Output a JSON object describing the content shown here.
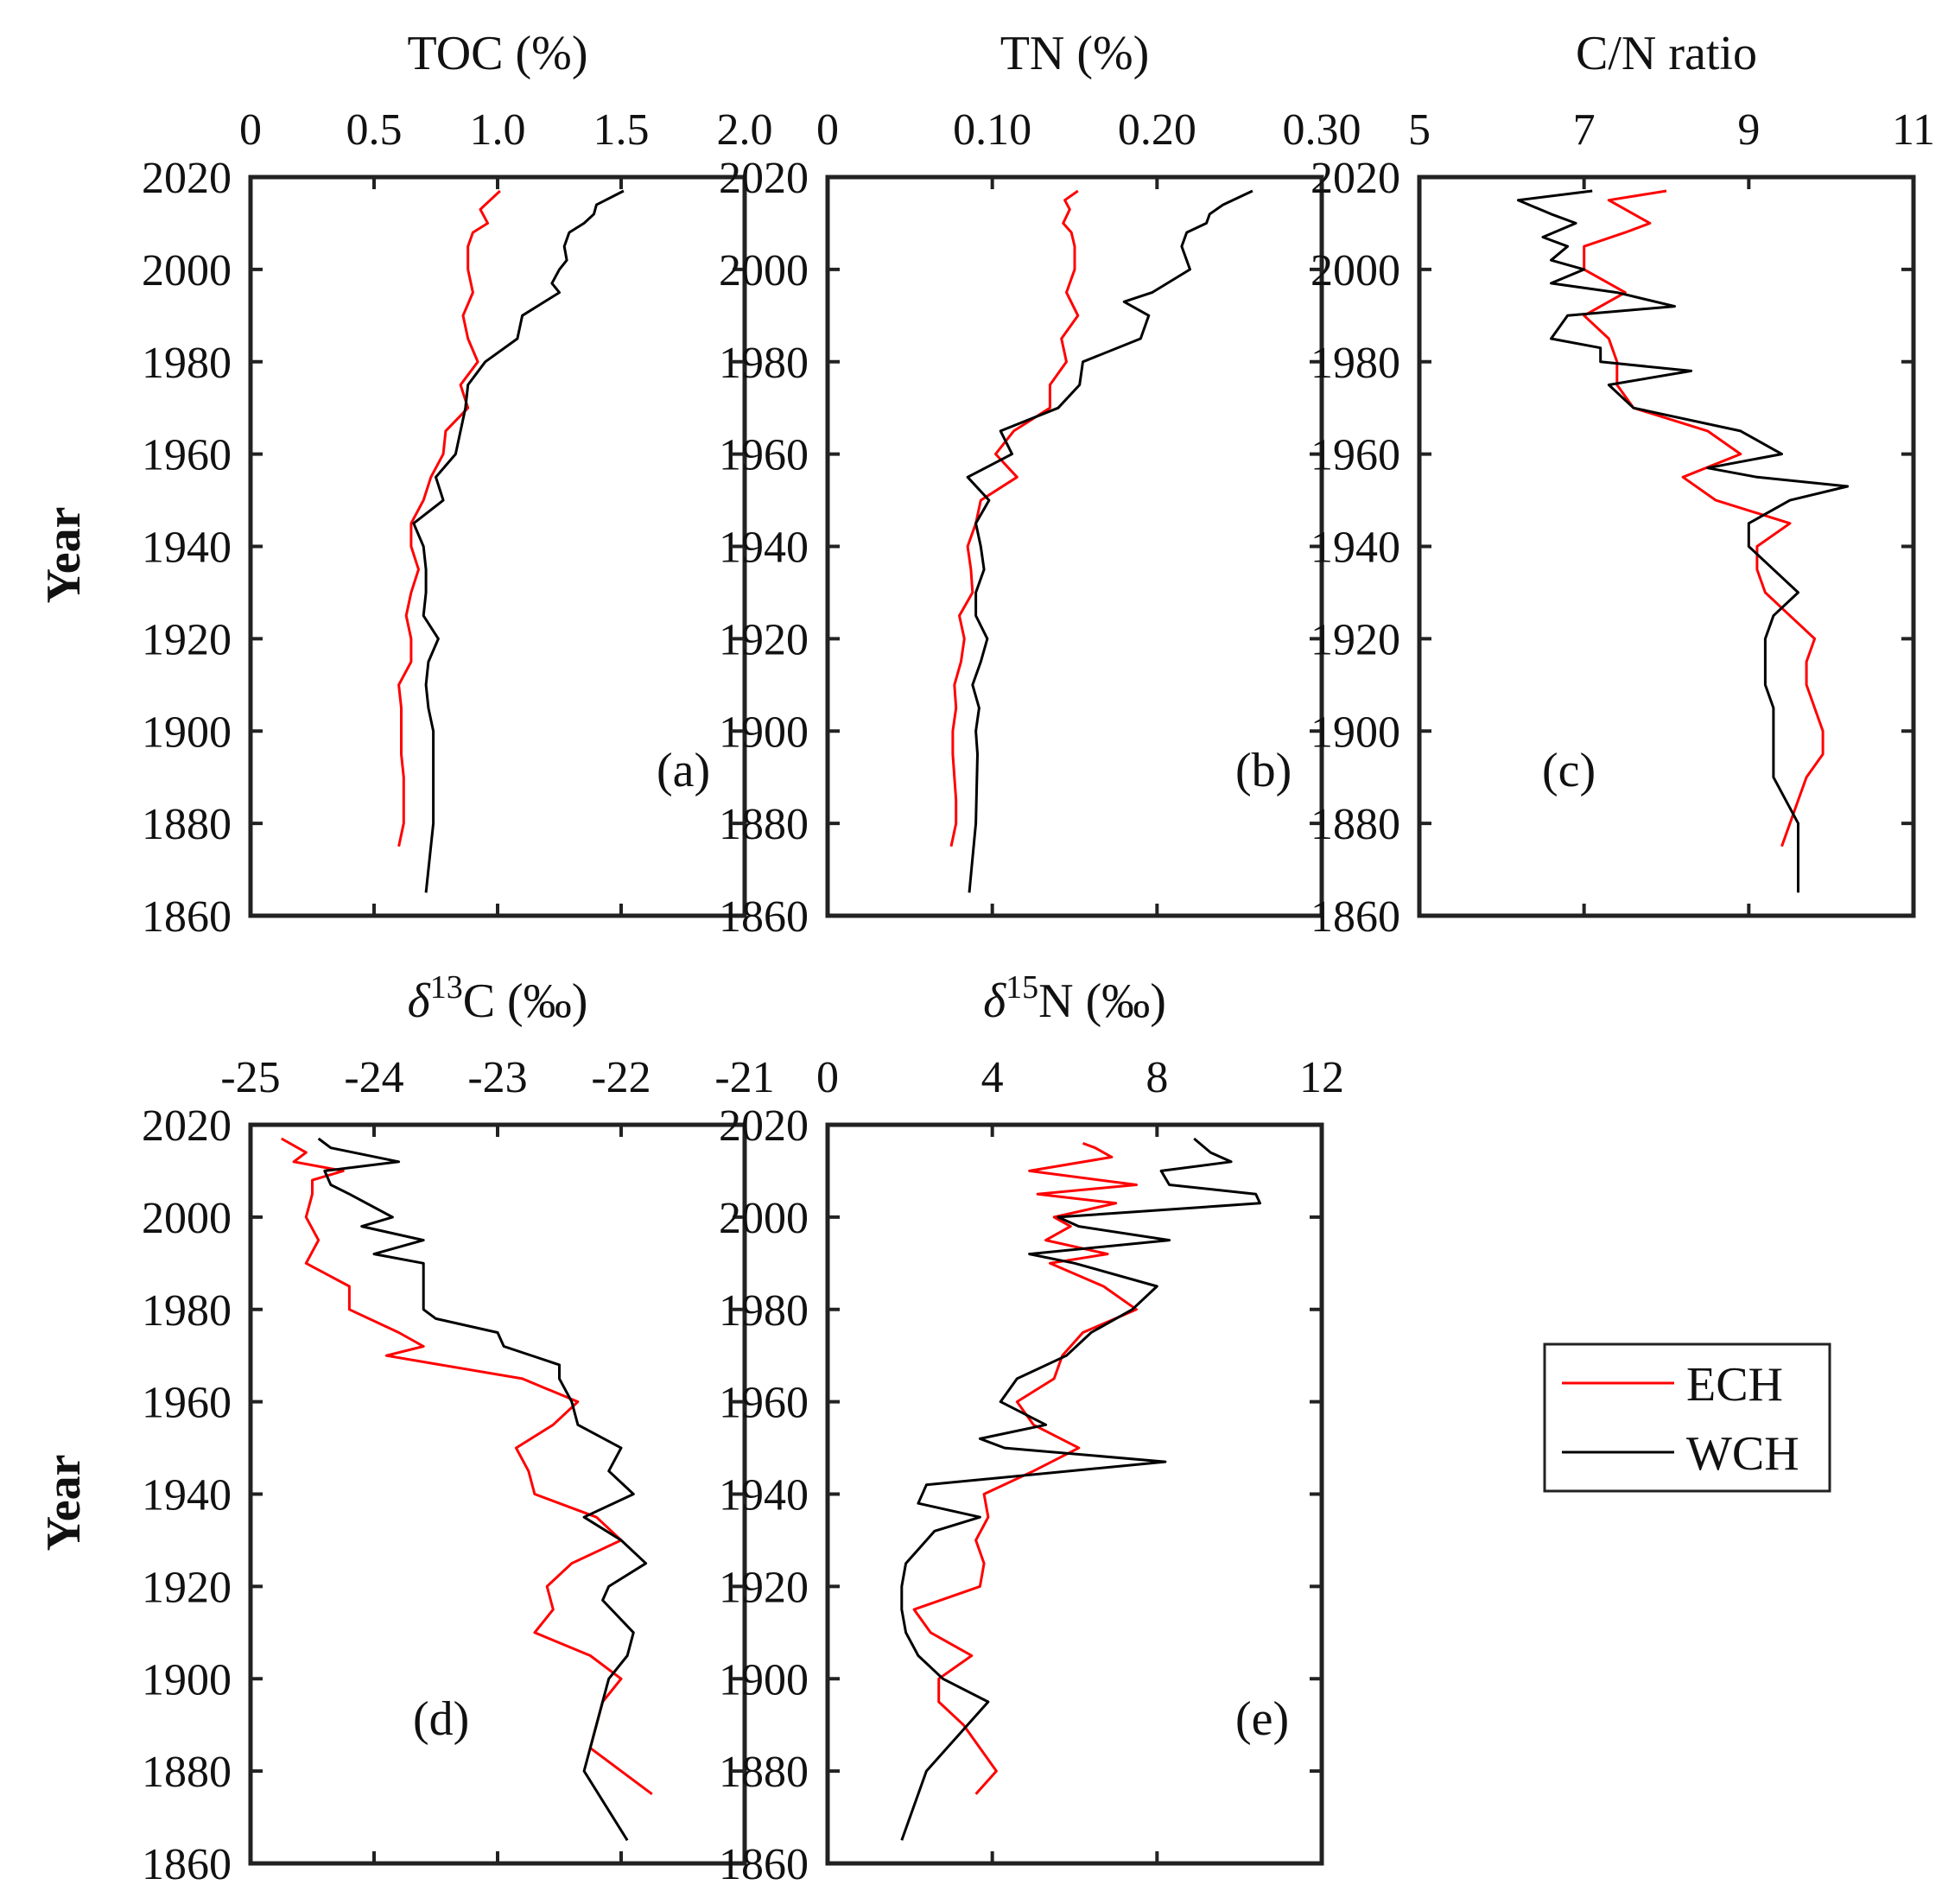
{
  "series_names": {
    "ech": "ECH",
    "wch": "WCH"
  },
  "colors": {
    "ech": "#ff0000",
    "wch": "#000000",
    "axis": "#222222"
  },
  "y_axis": {
    "label": "Year",
    "range": [
      1860,
      2020
    ],
    "ticks": [
      "2020",
      "2000",
      "1980",
      "1960",
      "1940",
      "1920",
      "1900",
      "1880",
      "1860"
    ]
  },
  "legend": {
    "ech": "ECH",
    "wch": "WCH",
    "placement": "right of panel (e)"
  },
  "chart_data": [
    {
      "type": "line",
      "panel": "(a)",
      "title": "TOC (%)",
      "xlim": [
        0,
        2.0
      ],
      "xticks": [
        {
          "v": 0,
          "label": "0"
        },
        {
          "v": 0.5,
          "label": "0.5"
        },
        {
          "v": 1.0,
          "label": "1.0"
        },
        {
          "v": 1.5,
          "label": "1.5"
        },
        {
          "v": 2.0,
          "label": "2.0"
        }
      ],
      "series": [
        {
          "name": "ECH",
          "color": "#ff0000",
          "year": [
            2017,
            2015,
            2013,
            2010,
            2008,
            2005,
            2000,
            1995,
            1990,
            1985,
            1980,
            1975,
            1970,
            1965,
            1960,
            1955,
            1950,
            1945,
            1940,
            1935,
            1930,
            1925,
            1920,
            1915,
            1910,
            1905,
            1900,
            1895,
            1890,
            1885,
            1880,
            1875
          ],
          "value": [
            1.01,
            0.97,
            0.93,
            0.96,
            0.9,
            0.88,
            0.88,
            0.9,
            0.86,
            0.88,
            0.92,
            0.85,
            0.88,
            0.79,
            0.78,
            0.73,
            0.7,
            0.65,
            0.65,
            0.68,
            0.65,
            0.63,
            0.65,
            0.65,
            0.6,
            0.61,
            0.61,
            0.61,
            0.62,
            0.62,
            0.62,
            0.6
          ]
        },
        {
          "name": "WCH",
          "color": "#000000",
          "year": [
            2017,
            2014,
            2012,
            2010,
            2008,
            2005,
            2002,
            2000,
            1997,
            1995,
            1990,
            1985,
            1980,
            1975,
            1970,
            1965,
            1960,
            1955,
            1950,
            1945,
            1940,
            1935,
            1930,
            1925,
            1920,
            1915,
            1910,
            1905,
            1900,
            1895,
            1880,
            1865
          ],
          "value": [
            1.51,
            1.4,
            1.39,
            1.35,
            1.29,
            1.27,
            1.28,
            1.25,
            1.22,
            1.25,
            1.1,
            1.08,
            0.95,
            0.88,
            0.87,
            0.85,
            0.83,
            0.75,
            0.78,
            0.66,
            0.7,
            0.71,
            0.71,
            0.7,
            0.76,
            0.72,
            0.71,
            0.72,
            0.74,
            0.74,
            0.74,
            0.71
          ]
        }
      ]
    },
    {
      "type": "line",
      "panel": "(b)",
      "title": "TN (%)",
      "xlim": [
        0,
        0.3
      ],
      "xticks": [
        {
          "v": 0,
          "label": "0"
        },
        {
          "v": 0.1,
          "label": "0.10"
        },
        {
          "v": 0.2,
          "label": "0.20"
        },
        {
          "v": 0.3,
          "label": "0.30"
        }
      ],
      "series": [
        {
          "name": "ECH",
          "color": "#ff0000",
          "year": [
            2017,
            2015,
            2013,
            2010,
            2008,
            2005,
            2000,
            1995,
            1990,
            1985,
            1980,
            1975,
            1970,
            1965,
            1960,
            1955,
            1950,
            1945,
            1940,
            1935,
            1930,
            1925,
            1920,
            1915,
            1910,
            1905,
            1900,
            1895,
            1890,
            1885,
            1880,
            1875
          ],
          "value": [
            0.152,
            0.144,
            0.147,
            0.143,
            0.148,
            0.15,
            0.15,
            0.145,
            0.152,
            0.142,
            0.145,
            0.135,
            0.135,
            0.113,
            0.102,
            0.115,
            0.093,
            0.09,
            0.085,
            0.087,
            0.088,
            0.08,
            0.083,
            0.081,
            0.077,
            0.078,
            0.076,
            0.076,
            0.077,
            0.078,
            0.078,
            0.075
          ]
        },
        {
          "name": "WCH",
          "color": "#000000",
          "year": [
            2017,
            2014,
            2012,
            2010,
            2008,
            2005,
            2000,
            1995,
            1993,
            1990,
            1985,
            1980,
            1975,
            1970,
            1965,
            1960,
            1955,
            1950,
            1945,
            1940,
            1935,
            1930,
            1925,
            1920,
            1915,
            1910,
            1905,
            1900,
            1895,
            1880,
            1865
          ],
          "value": [
            0.258,
            0.24,
            0.232,
            0.23,
            0.218,
            0.215,
            0.22,
            0.197,
            0.18,
            0.195,
            0.19,
            0.155,
            0.153,
            0.14,
            0.105,
            0.112,
            0.085,
            0.098,
            0.09,
            0.093,
            0.095,
            0.09,
            0.09,
            0.097,
            0.093,
            0.088,
            0.092,
            0.09,
            0.091,
            0.09,
            0.086
          ]
        }
      ]
    },
    {
      "type": "line",
      "panel": "(c)",
      "title": "C/N ratio",
      "xlim": [
        5,
        11
      ],
      "xticks": [
        {
          "v": 5,
          "label": "5"
        },
        {
          "v": 7,
          "label": "7"
        },
        {
          "v": 9,
          "label": "9"
        },
        {
          "v": 11,
          "label": "11"
        }
      ],
      "series": [
        {
          "name": "ECH",
          "color": "#ff0000",
          "year": [
            2017,
            2015,
            2010,
            2008,
            2005,
            2000,
            1995,
            1990,
            1985,
            1980,
            1975,
            1970,
            1965,
            1960,
            1955,
            1950,
            1945,
            1940,
            1935,
            1930,
            1925,
            1920,
            1915,
            1910,
            1905,
            1900,
            1895,
            1890,
            1885,
            1880,
            1875
          ],
          "value": [
            8.0,
            7.3,
            7.8,
            7.5,
            7.0,
            7.0,
            7.5,
            7.0,
            7.3,
            7.4,
            7.4,
            7.6,
            8.5,
            8.9,
            8.2,
            8.6,
            9.5,
            9.1,
            9.1,
            9.2,
            9.5,
            9.8,
            9.7,
            9.7,
            9.8,
            9.9,
            9.9,
            9.7,
            9.6,
            9.5,
            9.4
          ]
        },
        {
          "name": "WCH",
          "color": "#000000",
          "year": [
            2017,
            2015,
            2012,
            2010,
            2007,
            2005,
            2002,
            2000,
            1997,
            1995,
            1992,
            1990,
            1985,
            1983,
            1980,
            1978,
            1975,
            1970,
            1965,
            1960,
            1957,
            1955,
            1953,
            1950,
            1945,
            1940,
            1935,
            1930,
            1925,
            1920,
            1910,
            1905,
            1900,
            1890,
            1880,
            1865
          ],
          "value": [
            7.1,
            6.2,
            6.6,
            6.9,
            6.5,
            6.8,
            6.6,
            7.0,
            6.6,
            7.4,
            8.1,
            6.8,
            6.6,
            7.2,
            7.2,
            8.3,
            7.3,
            7.6,
            8.9,
            9.4,
            8.5,
            9.1,
            10.2,
            9.5,
            9.0,
            9.0,
            9.3,
            9.6,
            9.3,
            9.2,
            9.2,
            9.3,
            9.3,
            9.3,
            9.6,
            9.6
          ]
        }
      ]
    },
    {
      "type": "line",
      "panel": "(d)",
      "title": "δ13C (‰)",
      "xlim": [
        -25,
        -21
      ],
      "xticks": [
        {
          "v": -25,
          "label": "-25"
        },
        {
          "v": -24,
          "label": "-24"
        },
        {
          "v": -23,
          "label": "-23"
        },
        {
          "v": -22,
          "label": "-22"
        },
        {
          "v": -21,
          "label": "-21"
        }
      ],
      "series": [
        {
          "name": "ECH",
          "color": "#ff0000",
          "year": [
            2017,
            2014,
            2012,
            2010,
            2008,
            2005,
            2000,
            1995,
            1990,
            1985,
            1980,
            1975,
            1972,
            1970,
            1965,
            1960,
            1955,
            1950,
            1945,
            1940,
            1935,
            1930,
            1925,
            1920,
            1915,
            1910,
            1905,
            1900,
            1895,
            1885,
            1875
          ],
          "value": [
            -24.75,
            -24.55,
            -24.65,
            -24.25,
            -24.5,
            -24.5,
            -24.55,
            -24.45,
            -24.55,
            -24.2,
            -24.2,
            -23.8,
            -23.6,
            -23.9,
            -22.8,
            -22.35,
            -22.55,
            -22.85,
            -22.75,
            -22.7,
            -22.2,
            -22.0,
            -22.4,
            -22.6,
            -22.55,
            -22.7,
            -22.25,
            -22.0,
            -22.15,
            -22.25,
            -21.75
          ]
        },
        {
          "name": "WCH",
          "color": "#000000",
          "year": [
            2017,
            2015,
            2012,
            2010,
            2007,
            2005,
            2000,
            1998,
            1995,
            1992,
            1990,
            1985,
            1980,
            1978,
            1975,
            1972,
            1968,
            1965,
            1960,
            1955,
            1950,
            1945,
            1940,
            1935,
            1930,
            1925,
            1920,
            1917,
            1910,
            1905,
            1900,
            1890,
            1880,
            1865
          ],
          "value": [
            -24.45,
            -24.35,
            -23.8,
            -24.4,
            -24.35,
            -24.2,
            -23.85,
            -24.1,
            -23.6,
            -24.0,
            -23.6,
            -23.6,
            -23.6,
            -23.5,
            -23.0,
            -22.95,
            -22.5,
            -22.5,
            -22.4,
            -22.35,
            -22.0,
            -22.1,
            -21.9,
            -22.3,
            -22.0,
            -21.8,
            -22.1,
            -22.15,
            -21.9,
            -21.95,
            -22.1,
            -22.2,
            -22.3,
            -21.95
          ]
        }
      ]
    },
    {
      "type": "line",
      "panel": "(e)",
      "title": "δ15N (‰)",
      "xlim": [
        0,
        12
      ],
      "xticks": [
        {
          "v": 0,
          "label": "0"
        },
        {
          "v": 4,
          "label": "4"
        },
        {
          "v": 8,
          "label": "8"
        },
        {
          "v": 12,
          "label": "12"
        }
      ],
      "series": [
        {
          "name": "ECH",
          "color": "#ff0000",
          "year": [
            2016,
            2015,
            2013,
            2010,
            2007,
            2005,
            2003,
            2000,
            1998,
            1995,
            1992,
            1990,
            1985,
            1980,
            1975,
            1970,
            1965,
            1960,
            1955,
            1950,
            1945,
            1940,
            1935,
            1930,
            1925,
            1920,
            1915,
            1910,
            1905,
            1900,
            1895,
            1890,
            1880,
            1875
          ],
          "value": [
            6.2,
            6.5,
            6.9,
            4.9,
            7.5,
            5.1,
            7.0,
            5.5,
            5.9,
            5.3,
            6.8,
            5.4,
            6.7,
            7.5,
            6.2,
            5.7,
            5.5,
            4.6,
            5.0,
            6.1,
            5.0,
            3.8,
            3.9,
            3.6,
            3.8,
            3.7,
            2.1,
            2.5,
            3.5,
            2.7,
            2.7,
            3.3,
            4.1,
            3.6
          ]
        },
        {
          "name": "WCH",
          "color": "#000000",
          "year": [
            2017,
            2014,
            2012,
            2010,
            2007,
            2005,
            2003,
            2000,
            1998,
            1995,
            1992,
            1990,
            1985,
            1980,
            1975,
            1970,
            1965,
            1960,
            1955,
            1952,
            1950,
            1947,
            1942,
            1938,
            1935,
            1932,
            1925,
            1920,
            1915,
            1910,
            1905,
            1900,
            1895,
            1880,
            1865
          ],
          "value": [
            8.9,
            9.3,
            9.8,
            8.1,
            8.3,
            10.4,
            10.5,
            5.6,
            6.1,
            8.3,
            4.9,
            6.0,
            8.0,
            7.4,
            6.4,
            5.8,
            4.6,
            4.2,
            5.3,
            3.7,
            4.3,
            8.2,
            2.4,
            2.2,
            3.7,
            2.6,
            1.9,
            1.8,
            1.8,
            1.9,
            2.2,
            2.8,
            3.9,
            2.4,
            1.8
          ]
        }
      ]
    }
  ]
}
